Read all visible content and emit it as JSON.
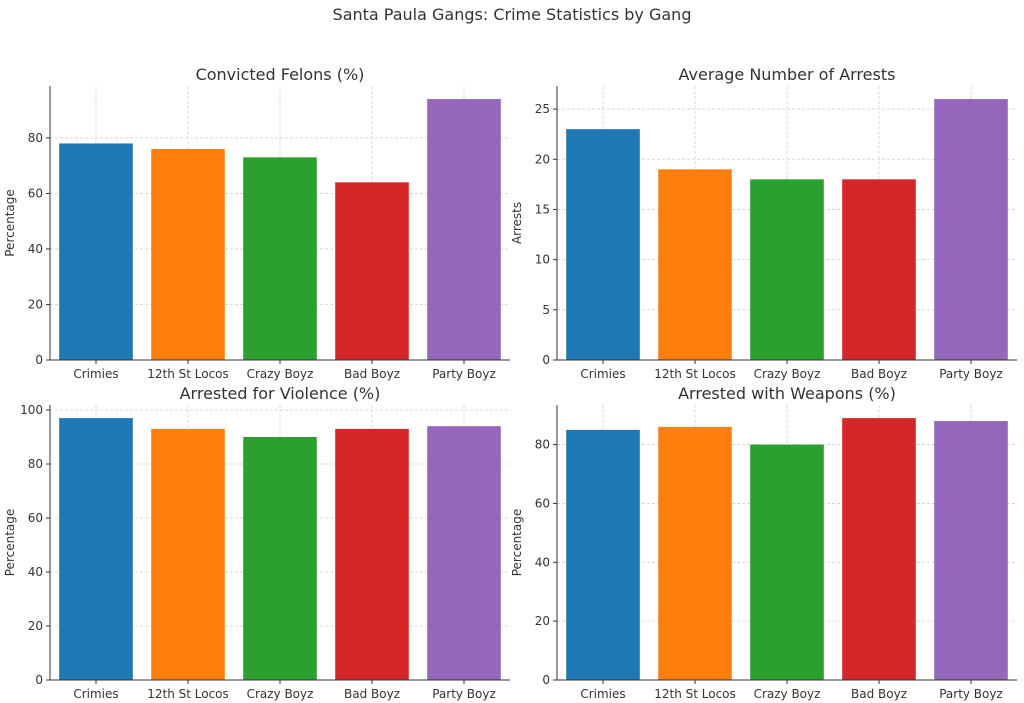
{
  "figure": {
    "title": "Santa Paula Gangs: Crime Statistics by Gang"
  },
  "chart_data": [
    {
      "type": "bar",
      "title": "Convicted Felons (%)",
      "xlabel": "",
      "ylabel": "Percentage",
      "categories": [
        "Crimies",
        "12th St Locos",
        "Crazy Boyz",
        "Bad Boyz",
        "Party Boyz"
      ],
      "values": [
        78,
        76,
        73,
        64,
        94
      ],
      "colors": [
        "#1f77b4",
        "#ff7f0e",
        "#2ca02c",
        "#d62728",
        "#9467bd"
      ],
      "ylim": [
        0,
        98.7
      ],
      "yticks": [
        0,
        20,
        40,
        60,
        80
      ],
      "grid": true
    },
    {
      "type": "bar",
      "title": "Average Number of Arrests",
      "xlabel": "",
      "ylabel": "Arrests",
      "categories": [
        "Crimies",
        "12th St Locos",
        "Crazy Boyz",
        "Bad Boyz",
        "Party Boyz"
      ],
      "values": [
        23,
        19,
        18,
        18,
        26
      ],
      "colors": [
        "#1f77b4",
        "#ff7f0e",
        "#2ca02c",
        "#d62728",
        "#9467bd"
      ],
      "ylim": [
        0,
        27.3
      ],
      "yticks": [
        0,
        5,
        10,
        15,
        20,
        25
      ],
      "grid": true
    },
    {
      "type": "bar",
      "title": "Arrested for Violence (%)",
      "xlabel": "",
      "ylabel": "Percentage",
      "categories": [
        "Crimies",
        "12th St Locos",
        "Crazy Boyz",
        "Bad Boyz",
        "Party Boyz"
      ],
      "values": [
        97,
        93,
        90,
        93,
        94
      ],
      "colors": [
        "#1f77b4",
        "#ff7f0e",
        "#2ca02c",
        "#d62728",
        "#9467bd"
      ],
      "ylim": [
        0,
        101.85
      ],
      "yticks": [
        0,
        20,
        40,
        60,
        80,
        100
      ],
      "grid": true
    },
    {
      "type": "bar",
      "title": "Arrested with Weapons (%)",
      "xlabel": "",
      "ylabel": "Percentage",
      "categories": [
        "Crimies",
        "12th St Locos",
        "Crazy Boyz",
        "Bad Boyz",
        "Party Boyz"
      ],
      "values": [
        85,
        86,
        80,
        89,
        88
      ],
      "colors": [
        "#1f77b4",
        "#ff7f0e",
        "#2ca02c",
        "#d62728",
        "#9467bd"
      ],
      "ylim": [
        0,
        93.45
      ],
      "yticks": [
        0,
        20,
        40,
        60,
        80
      ],
      "grid": true
    }
  ]
}
